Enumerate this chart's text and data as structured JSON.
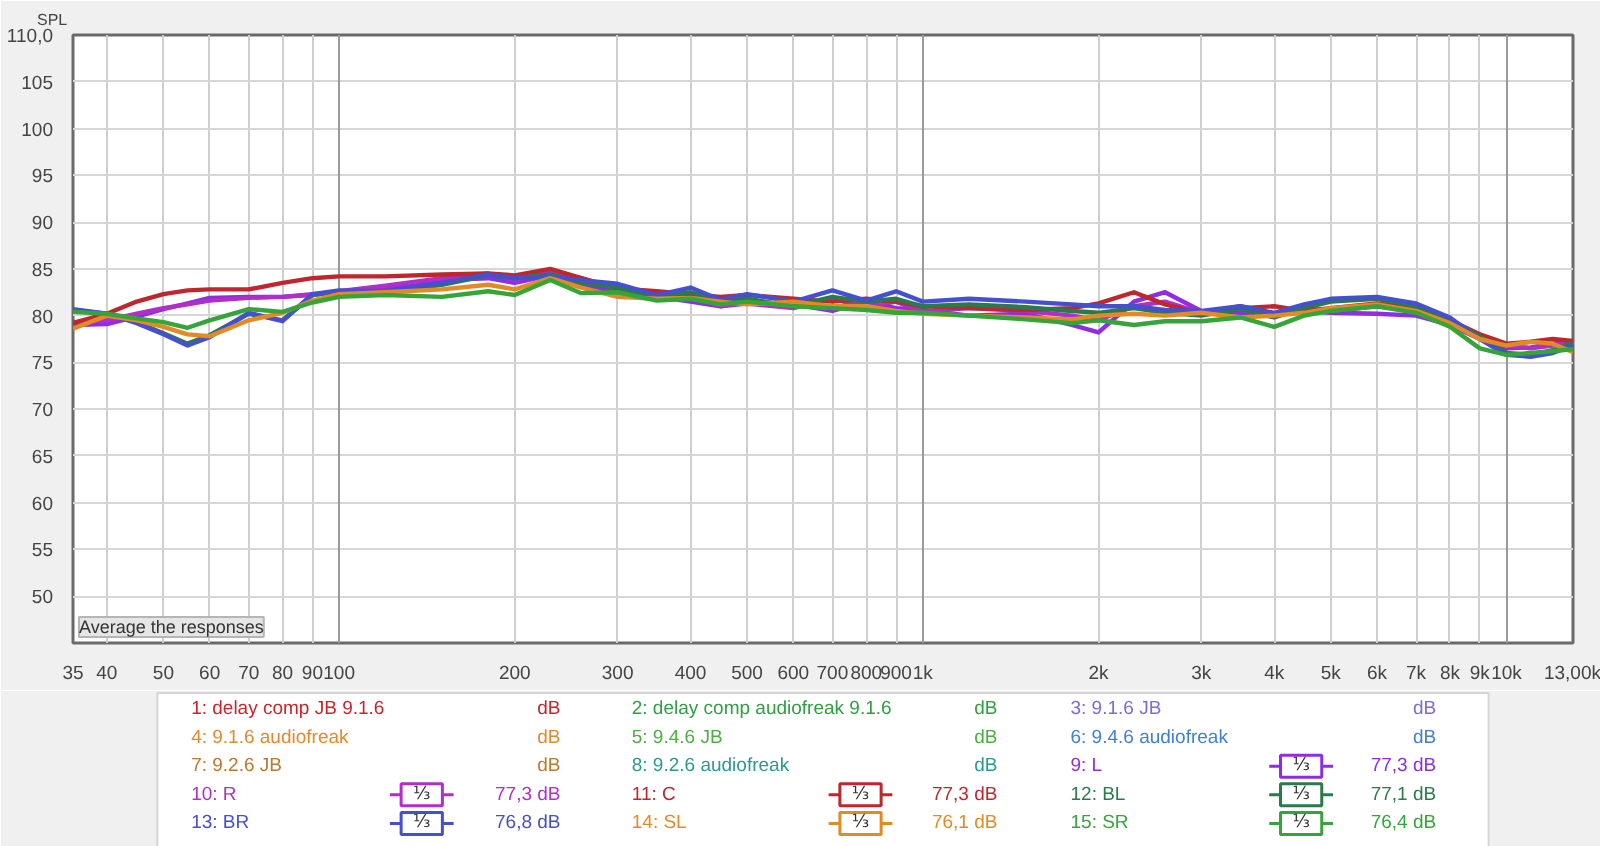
{
  "chart_data": {
    "type": "line",
    "log": "x",
    "grid": true,
    "legend": "bottom",
    "ylabel": "SPL",
    "xlim": [
      35,
      13000
    ],
    "ylim": [
      45,
      110
    ],
    "xticks": [
      35,
      40,
      50,
      60,
      70,
      80,
      90,
      100,
      200,
      300,
      400,
      500,
      600,
      700,
      800,
      900,
      {
        "value": 1000,
        "label": "1k"
      },
      {
        "value": 2000,
        "label": "2k"
      },
      {
        "value": 3000,
        "label": "3k"
      },
      {
        "value": 4000,
        "label": "4k"
      },
      {
        "value": 5000,
        "label": "5k"
      },
      {
        "value": 6000,
        "label": "6k"
      },
      {
        "value": 7000,
        "label": "7k"
      },
      {
        "value": 8000,
        "label": "8k"
      },
      {
        "value": 9000,
        "label": "9k"
      },
      {
        "value": 10000,
        "label": "10k"
      },
      {
        "value": 13000,
        "label": "13,00k"
      }
    ],
    "yticks": [
      50,
      55,
      60,
      65,
      70,
      75,
      80,
      85,
      90,
      95,
      100,
      105,
      {
        "value": 110,
        "label": "110,0"
      }
    ],
    "x": [
      35,
      40,
      45,
      50,
      55,
      60,
      70,
      80,
      90,
      100,
      120,
      150,
      180,
      200,
      230,
      260,
      300,
      350,
      400,
      450,
      500,
      600,
      700,
      800,
      900,
      1000,
      1200,
      1500,
      1800,
      2000,
      2300,
      2600,
      3000,
      3500,
      4000,
      4500,
      5000,
      6000,
      7000,
      8000,
      9000,
      10000,
      11000,
      12000,
      13000
    ],
    "series": [
      {
        "name": "1: delay comp JB 9.1.6",
        "color": "#c8262c",
        "values": [
          null,
          null,
          null,
          null,
          null,
          null,
          null,
          null,
          null,
          null,
          null,
          null,
          null,
          null,
          null,
          null,
          null,
          null,
          null,
          null,
          null,
          null,
          null,
          null,
          null,
          null,
          null,
          null,
          null,
          null,
          null,
          null,
          null,
          null,
          null,
          null,
          null,
          null,
          null,
          null,
          null,
          null,
          null,
          null,
          null
        ]
      },
      {
        "name": "2: delay comp audiofreak 9.1.6",
        "color": "#2f9e44",
        "values": [
          null,
          null,
          null,
          null,
          null,
          null,
          null,
          null,
          null,
          null,
          null,
          null,
          null,
          null,
          null,
          null,
          null,
          null,
          null,
          null,
          null,
          null,
          null,
          null,
          null,
          null,
          null,
          null,
          null,
          null,
          null,
          null,
          null,
          null,
          null,
          null,
          null,
          null,
          null,
          null,
          null,
          null,
          null,
          null,
          null
        ]
      },
      {
        "name": "3: 9.1.6 JB",
        "color": "#7d6bd6",
        "values": [
          null,
          null,
          null,
          null,
          null,
          null,
          null,
          null,
          null,
          null,
          null,
          null,
          null,
          null,
          null,
          null,
          null,
          null,
          null,
          null,
          null,
          null,
          null,
          null,
          null,
          null,
          null,
          null,
          null,
          null,
          null,
          null,
          null,
          null,
          null,
          null,
          null,
          null,
          null,
          null,
          null,
          null,
          null,
          null,
          null
        ]
      },
      {
        "name": "4: 9.1.6 audiofreak",
        "color": "#e5892a",
        "values": [
          null,
          null,
          null,
          null,
          null,
          null,
          null,
          null,
          null,
          null,
          null,
          null,
          null,
          null,
          null,
          null,
          null,
          null,
          null,
          null,
          null,
          null,
          null,
          null,
          null,
          null,
          null,
          null,
          null,
          null,
          null,
          null,
          null,
          null,
          null,
          null,
          null,
          null,
          null,
          null,
          null,
          null,
          null,
          null,
          null
        ]
      },
      {
        "name": "5: 9.4.6 JB",
        "color": "#4caf3f",
        "values": [
          null,
          null,
          null,
          null,
          null,
          null,
          null,
          null,
          null,
          null,
          null,
          null,
          null,
          null,
          null,
          null,
          null,
          null,
          null,
          null,
          null,
          null,
          null,
          null,
          null,
          null,
          null,
          null,
          null,
          null,
          null,
          null,
          null,
          null,
          null,
          null,
          null,
          null,
          null,
          null,
          null,
          null,
          null,
          null,
          null
        ]
      },
      {
        "name": "6: 9.4.6 audiofreak",
        "color": "#3f7fd6",
        "values": [
          null,
          null,
          null,
          null,
          null,
          null,
          null,
          null,
          null,
          null,
          null,
          null,
          null,
          null,
          null,
          null,
          null,
          null,
          null,
          null,
          null,
          null,
          null,
          null,
          null,
          null,
          null,
          null,
          null,
          null,
          null,
          null,
          null,
          null,
          null,
          null,
          null,
          null,
          null,
          null,
          null,
          null,
          null,
          null,
          null
        ]
      },
      {
        "name": "7: 9.2.6 JB",
        "color": "#c0762e",
        "values": [
          null,
          null,
          null,
          null,
          null,
          null,
          null,
          null,
          null,
          null,
          null,
          null,
          null,
          null,
          null,
          null,
          null,
          null,
          null,
          null,
          null,
          null,
          null,
          null,
          null,
          null,
          null,
          null,
          null,
          null,
          null,
          null,
          null,
          null,
          null,
          null,
          null,
          null,
          null,
          null,
          null,
          null,
          null,
          null,
          null
        ]
      },
      {
        "name": "8: 9.2.6 audiofreak",
        "color": "#2b9a8f",
        "values": [
          null,
          null,
          null,
          null,
          null,
          null,
          null,
          null,
          null,
          null,
          null,
          null,
          null,
          null,
          null,
          null,
          null,
          null,
          null,
          null,
          null,
          null,
          null,
          null,
          null,
          null,
          null,
          null,
          null,
          null,
          null,
          null,
          null,
          null,
          null,
          null,
          null,
          null,
          null,
          null,
          null,
          null,
          null,
          null,
          null
        ]
      },
      {
        "name": "9: L",
        "color": "#8e2de2",
        "values": [
          79.0,
          79.1,
          79.9,
          80.7,
          81.3,
          81.9,
          82.0,
          82.0,
          82.3,
          82.5,
          83.0,
          83.8,
          84.0,
          83.5,
          84.3,
          83.2,
          82.5,
          82.0,
          81.5,
          81.0,
          81.5,
          81.2,
          80.5,
          81.5,
          80.8,
          80.6,
          80.0,
          80.2,
          79.0,
          78.2,
          81.5,
          82.5,
          80.5,
          80.3,
          80.0,
          80.5,
          80.3,
          80.2,
          80.0,
          79.0,
          77.5,
          76.5,
          76.6,
          77.0,
          77.3
        ]
      },
      {
        "name": "10: R",
        "color": "#b12fc9",
        "values": [
          79.3,
          79.5,
          80.2,
          80.8,
          81.2,
          81.6,
          81.9,
          82.0,
          82.2,
          82.6,
          83.2,
          84.0,
          84.5,
          83.8,
          84.7,
          84.0,
          82.8,
          82.5,
          82.0,
          81.0,
          81.3,
          80.8,
          81.8,
          80.9,
          81.5,
          80.4,
          80.8,
          80.5,
          80.0,
          79.5,
          81.0,
          81.5,
          80.3,
          81.0,
          80.2,
          80.8,
          80.5,
          81.0,
          80.5,
          79.5,
          77.8,
          76.8,
          76.5,
          76.8,
          77.3
        ]
      },
      {
        "name": "11: C",
        "color": "#c0262d",
        "values": [
          79.2,
          80.2,
          81.5,
          82.3,
          82.7,
          82.8,
          82.8,
          83.5,
          84.0,
          84.2,
          84.2,
          84.4,
          84.5,
          84.3,
          85.0,
          84.0,
          82.9,
          82.6,
          82.3,
          82.0,
          82.2,
          81.8,
          81.5,
          81.8,
          81.5,
          81.0,
          80.8,
          80.6,
          80.8,
          81.3,
          82.5,
          81.2,
          80.2,
          80.8,
          81.0,
          80.5,
          80.8,
          81.3,
          80.8,
          79.5,
          78.0,
          77.0,
          77.2,
          77.5,
          77.3
        ]
      },
      {
        "name": "12: BL",
        "color": "#2b7a4b",
        "values": [
          80.6,
          80.2,
          79.3,
          78.1,
          77.0,
          77.9,
          80.2,
          79.5,
          82.2,
          82.6,
          82.5,
          83.3,
          84.3,
          84.0,
          84.4,
          83.5,
          83.0,
          82.0,
          82.5,
          81.5,
          81.8,
          81.0,
          82.0,
          81.5,
          81.8,
          81.0,
          81.2,
          80.9,
          80.5,
          80.3,
          80.8,
          80.3,
          80.0,
          80.7,
          79.8,
          80.8,
          81.5,
          81.8,
          81.0,
          79.5,
          77.8,
          76.0,
          75.8,
          76.3,
          77.1
        ]
      },
      {
        "name": "13: BR",
        "color": "#4450d0",
        "values": [
          80.7,
          80.2,
          79.2,
          78.0,
          76.8,
          77.7,
          80.3,
          79.4,
          82.3,
          82.7,
          82.6,
          83.5,
          84.4,
          84.0,
          84.2,
          83.8,
          83.4,
          82.2,
          83.0,
          81.7,
          82.3,
          81.5,
          82.7,
          81.6,
          82.6,
          81.5,
          81.8,
          81.5,
          81.2,
          81.0,
          81.0,
          80.6,
          80.5,
          81.0,
          80.3,
          81.2,
          81.8,
          82.0,
          81.3,
          79.8,
          77.5,
          75.8,
          75.6,
          76.0,
          76.8
        ]
      },
      {
        "name": "14: SL",
        "color": "#e28a25",
        "values": [
          78.6,
          80.0,
          79.5,
          78.8,
          78.0,
          77.8,
          79.5,
          80.3,
          81.6,
          82.3,
          82.5,
          82.8,
          83.3,
          82.8,
          84.0,
          83.0,
          82.0,
          81.8,
          81.9,
          81.5,
          81.2,
          81.5,
          81.0,
          81.0,
          80.5,
          80.2,
          80.0,
          79.8,
          79.6,
          80.0,
          80.2,
          80.0,
          80.3,
          79.8,
          80.0,
          80.3,
          80.8,
          81.2,
          80.5,
          79.2,
          77.5,
          76.8,
          77.2,
          77.0,
          76.1
        ]
      },
      {
        "name": "15: SR",
        "color": "#35a53a",
        "values": [
          80.4,
          80.2,
          79.7,
          79.3,
          78.7,
          79.5,
          80.7,
          80.4,
          81.4,
          82.0,
          82.2,
          82.0,
          82.6,
          82.2,
          83.8,
          82.4,
          82.5,
          81.6,
          81.8,
          81.2,
          81.5,
          81.0,
          80.8,
          80.6,
          80.3,
          80.3,
          80.0,
          79.6,
          79.2,
          79.5,
          79.0,
          79.4,
          79.4,
          79.8,
          78.8,
          80.0,
          80.5,
          81.0,
          80.3,
          78.8,
          76.5,
          75.8,
          76.0,
          76.2,
          76.4
        ]
      }
    ],
    "annotations": [
      "dB",
      "dB",
      "dB",
      "dB",
      "dB",
      "dB",
      "dB",
      "dB",
      "77,3 dB",
      "77,3 dB",
      "77,3 dB",
      "77,1 dB",
      "76,8 dB",
      "76,1 dB",
      "76,4 dB",
      "⅓",
      "Average the responses"
    ]
  }
}
